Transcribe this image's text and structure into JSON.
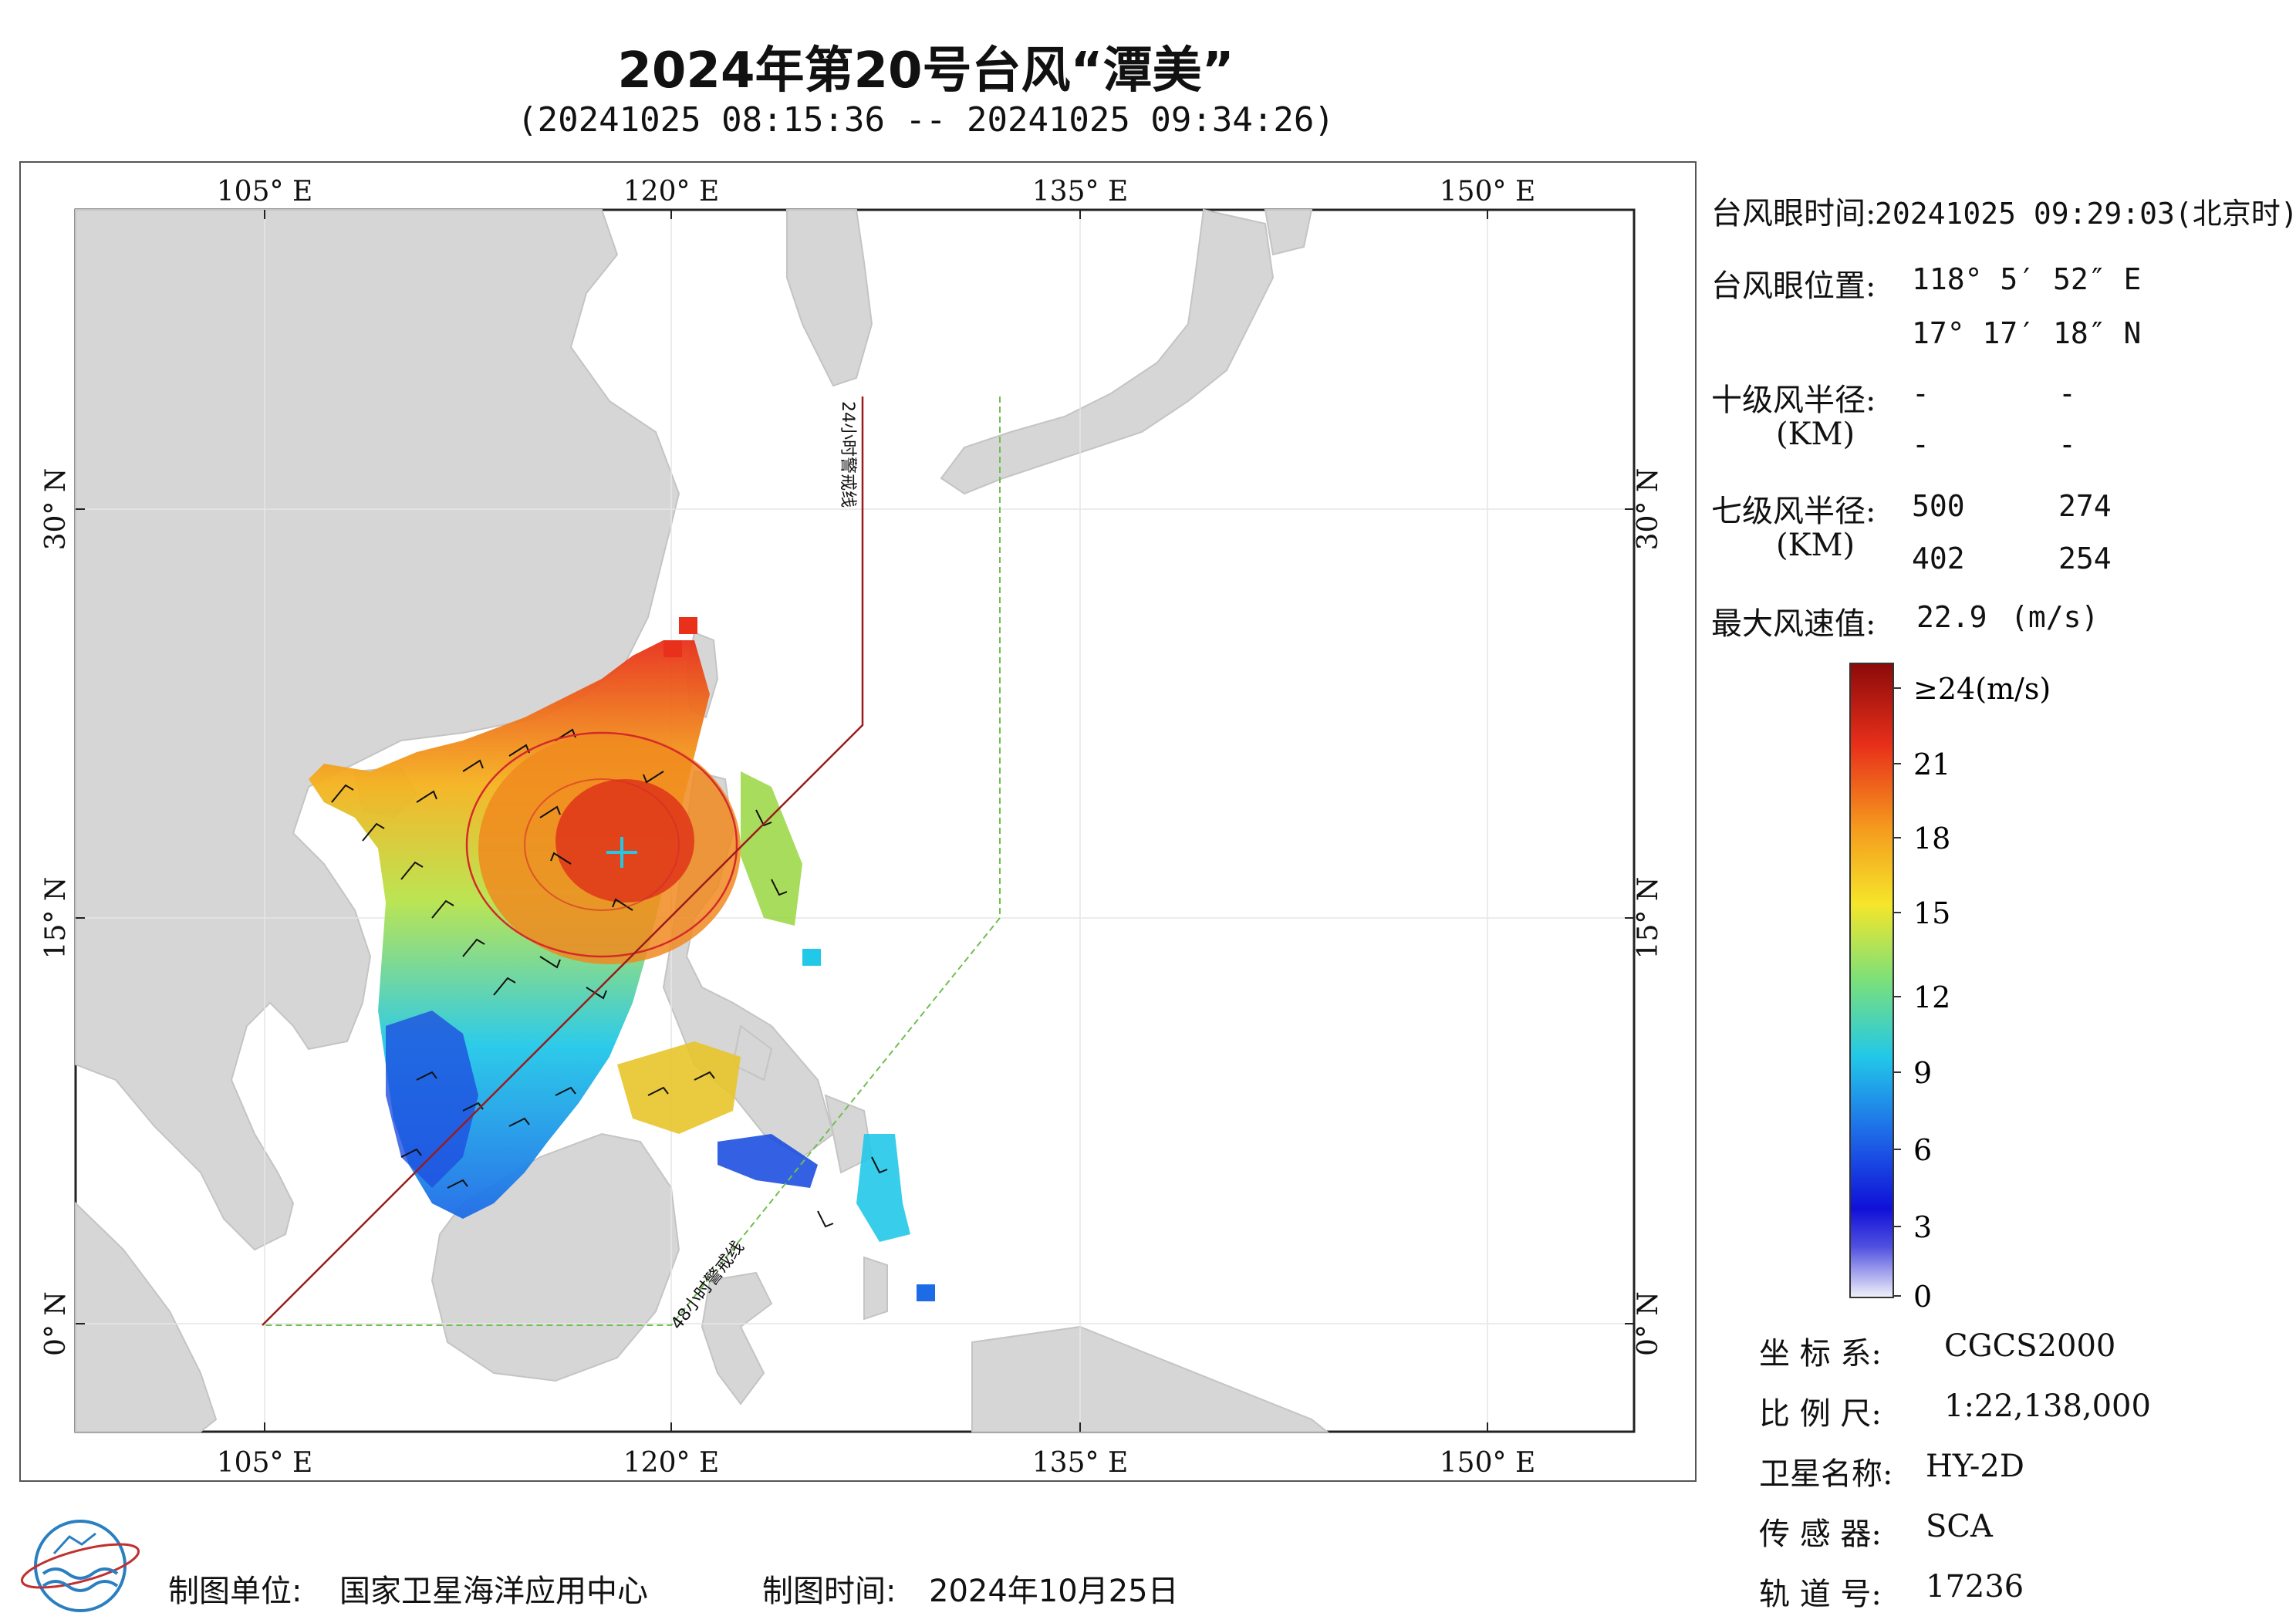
{
  "title": "2024年第20号台风“潭美”",
  "subtitle": "(20241025 08:15:36 -- 20241025 09:34:26)",
  "map": {
    "lon_ticks": [
      "105° E",
      "120° E",
      "135° E",
      "150° E"
    ],
    "lat_ticks": [
      "30° N",
      "15° N",
      "0° N"
    ],
    "warning_24h": "24小时警戒线",
    "warning_48h": "48小时警戒线",
    "colors": {
      "land": "#d6d6d6",
      "sea": "#ffffff",
      "warn24": "#9b1c1c",
      "warn48": "#6fbf4f",
      "radius": "#d42a2a"
    }
  },
  "info": {
    "eye_time_label": "台风眼时间:",
    "eye_time_value": "20241025 09:29:03(北京时)",
    "eye_pos_label": "台风眼位置:",
    "eye_lon": "118° 5′ 52″ E",
    "eye_lat": "17° 17′ 18″ N",
    "r10_label": "十级风半径:",
    "r10_unit": "(KM)",
    "r10_values": [
      "-",
      "-",
      "-",
      "-"
    ],
    "r7_label": "七级风半径:",
    "r7_unit": "(KM)",
    "r7_values": [
      "500",
      "274",
      "402",
      "254"
    ],
    "max_label": "最大风速值:",
    "max_value": "22.9",
    "max_unit": "(m/s)"
  },
  "colorbar": {
    "labels": [
      "≥24(m/s)",
      "21",
      "18",
      "15",
      "12",
      "9",
      "6",
      "3",
      "0"
    ],
    "stops": [
      "#f2f2fa",
      "#1010d8",
      "#1e6be8",
      "#22c8e8",
      "#7be07a",
      "#f5e62a",
      "#f59a1e",
      "#e8301a",
      "#8c0a0a"
    ]
  },
  "meta": {
    "crs_label": "坐 标 系:",
    "crs_value": "CGCS2000",
    "scale_label": "比 例 尺:",
    "scale_value": "1:22,138,000",
    "sat_label": "卫星名称:",
    "sat_value": "HY-2D",
    "sensor_label": "传 感 器:",
    "sensor_value": "SCA",
    "orbit_label": "轨 道 号:",
    "orbit_value": "17236"
  },
  "footer": {
    "org_label": "制图单位:",
    "org_value": "国家卫星海洋应用中心",
    "date_label": "制图时间:",
    "date_value": "2024年10月25日"
  }
}
